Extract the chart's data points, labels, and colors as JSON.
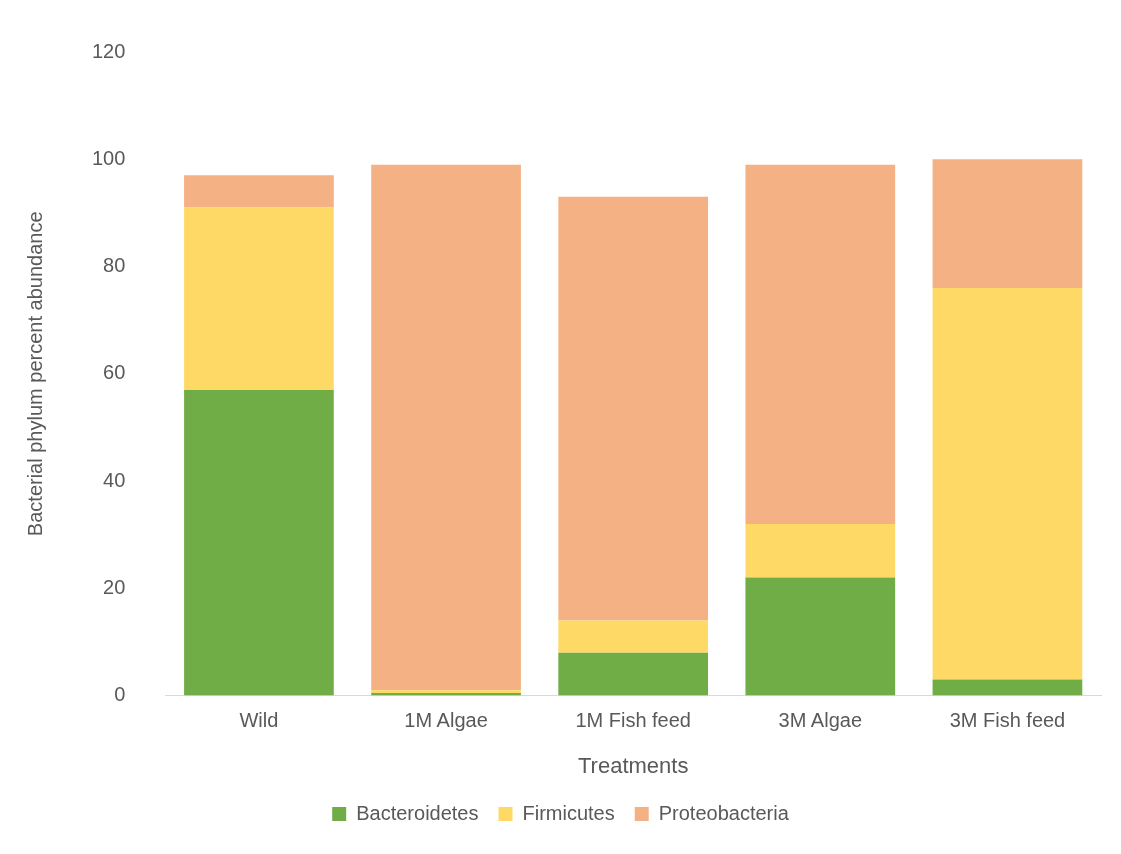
{
  "chart_data": {
    "type": "bar",
    "stacked": true,
    "xlabel": "Treatments",
    "ylabel": "Bacterial phylum percent abundance",
    "categories": [
      "Wild",
      "1M Algae",
      "1M Fish feed",
      "3M Algae",
      "3M Fish feed"
    ],
    "series": [
      {
        "name": "Bacteroidetes",
        "color": "#70ad47",
        "values": [
          57,
          0.5,
          8,
          22,
          3
        ]
      },
      {
        "name": "Firmicutes",
        "color": "#ffd966",
        "values": [
          34,
          0.5,
          6,
          10,
          73
        ]
      },
      {
        "name": "Proteobacteria",
        "color": "#f4b183",
        "values": [
          6,
          98,
          79,
          67,
          24
        ]
      }
    ],
    "ylim": [
      0,
      120
    ],
    "yticks": [
      0,
      20,
      40,
      60,
      80,
      100,
      120
    ],
    "grid": false,
    "legend": "bottom"
  }
}
